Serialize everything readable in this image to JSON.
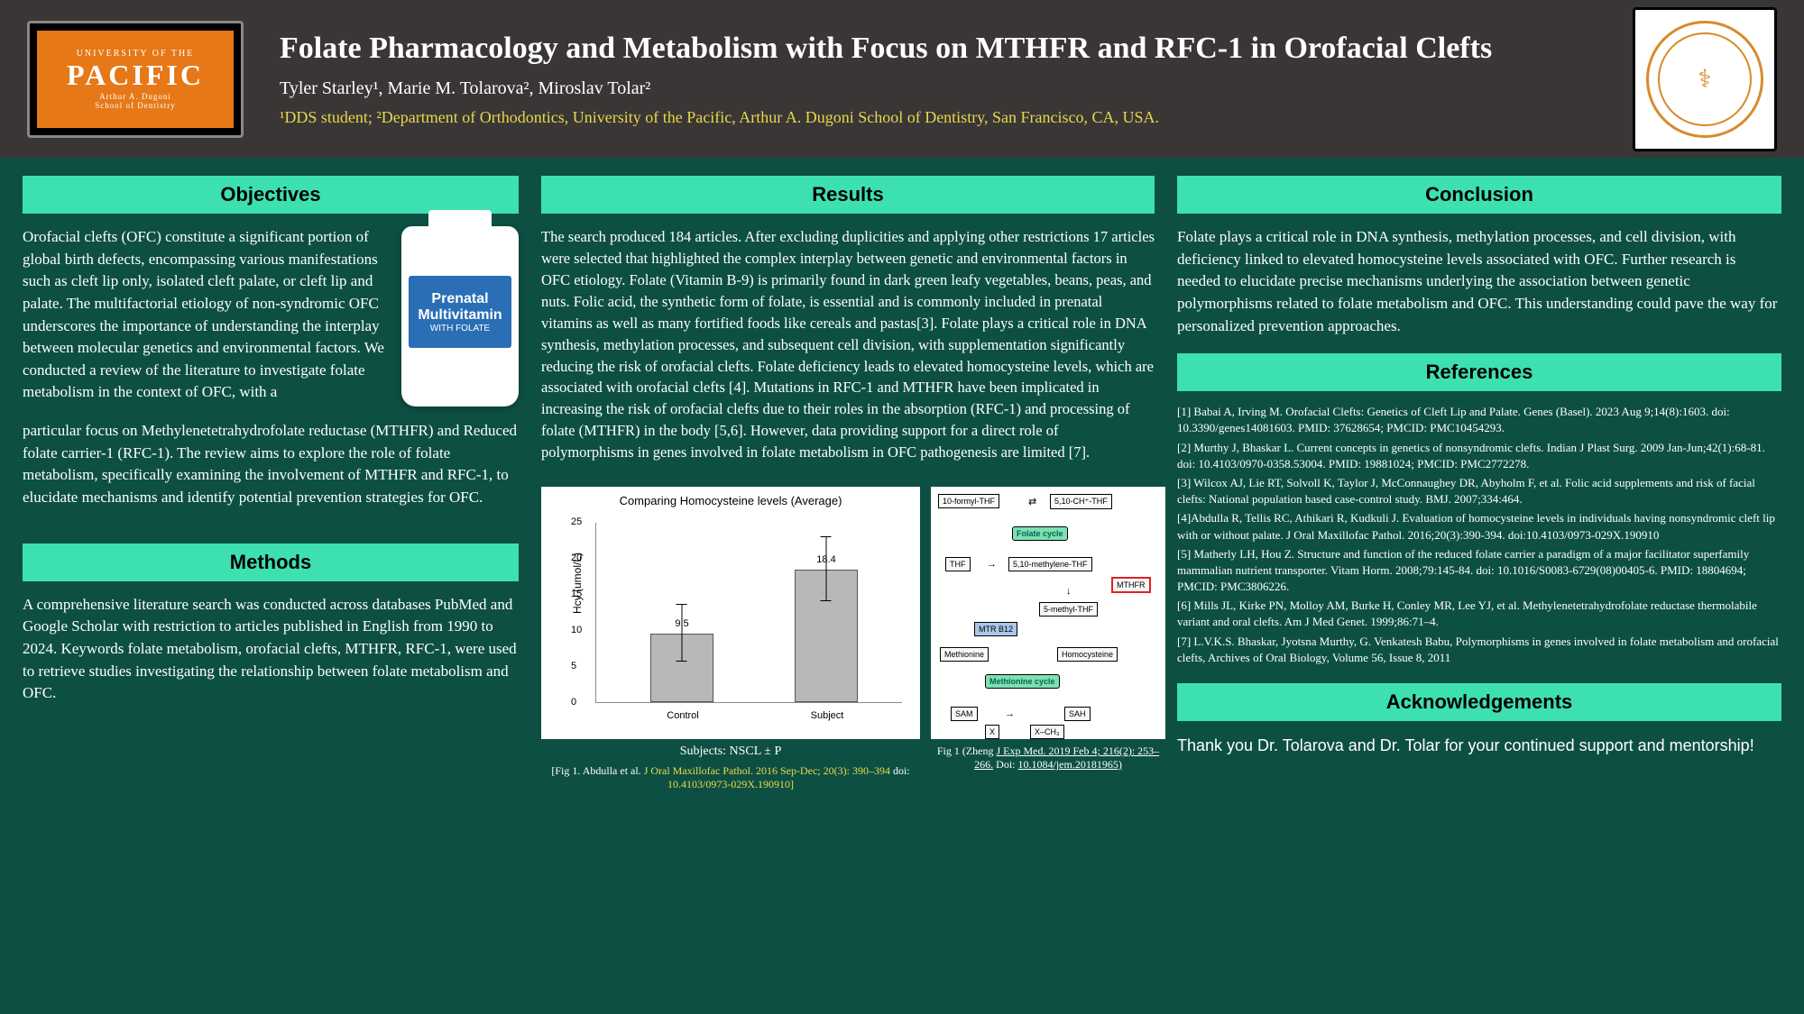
{
  "header": {
    "logo_left": {
      "line1": "UNIVERSITY OF THE",
      "line2": "PACIFIC",
      "line3": "Arthur A. Dugoni",
      "line4": "School of Dentistry"
    },
    "title": "Folate Pharmacology and Metabolism with Focus on MTHFR and RFC-1 in Orofacial Clefts",
    "authors": "Tyler Starley¹, Marie M. Tolarova², Miroslav Tolar²",
    "affiliation": "¹DDS student;  ²Department of Orthodontics, University of the Pacific,  Arthur A. Dugoni School of Dentistry, San Francisco, CA, USA."
  },
  "sections": {
    "objectives": {
      "header": "Objectives",
      "text1": "Orofacial clefts (OFC) constitute a significant portion of global birth defects, encompassing various manifestations such as cleft lip only, isolated cleft palate, or cleft lip and palate. The multifactorial etiology of non-syndromic OFC underscores the importance of understanding the interplay between molecular genetics and environmental factors. We conducted a review of the literature to investigate folate metabolism in the context of OFC, with a",
      "text2": "particular focus on Methylenetetrahydrofolate reductase (MTHFR) and Reduced folate carrier-1 (RFC-1). The review aims to explore the role of folate metabolism, specifically examining the involvement of MTHFR and RFC-1, to elucidate mechanisms and identify potential prevention strategies for OFC.",
      "bottle": {
        "l1": "Prenatal",
        "l2": "Multivitamin",
        "l3": "WITH FOLATE"
      }
    },
    "methods": {
      "header": "Methods",
      "text": "A comprehensive literature search was conducted across databases PubMed and Google Scholar with restriction to articles published in English from 1990 to 2024.  Keywords folate metabolism, orofacial clefts, MTHFR, RFC-1, were used to retrieve studies investigating the relationship between folate metabolism and OFC."
    },
    "results": {
      "header": "Results",
      "text": "The search produced 184 articles. After excluding duplicities and applying other restrictions 17 articles were selected that highlighted the complex interplay between genetic and environmental factors in OFC etiology. Folate (Vitamin B-9) is primarily found in dark green leafy vegetables, beans, peas, and nuts. Folic acid, the synthetic form of folate, is essential and is commonly included in prenatal vitamins as well as many fortified foods like cereals and pastas[3]. Folate plays a critical role in DNA synthesis, methylation processes, and subsequent cell division, with supplementation significantly reducing the risk of orofacial clefts. Folate deficiency leads to elevated homocysteine levels, which are associated with orofacial clefts [4]. Mutations in RFC-1 and MTHFR have been implicated in increasing the risk of orofacial clefts due to their roles in the absorption (RFC-1) and processing of folate (MTHFR) in the body [5,6]. However, data providing support for a direct role of polymorphisms in genes involved in folate metabolism in OFC pathogenesis are limited [7]."
    },
    "conclusion": {
      "header": "Conclusion",
      "text": "Folate plays a critical role in DNA synthesis, methylation processes, and cell division, with deficiency linked to elevated homocysteine levels associated with OFC. Further research is needed to elucidate precise mechanisms underlying the association between genetic polymorphisms related to folate metabolism and OFC. This understanding could pave the way for personalized prevention approaches."
    },
    "references": {
      "header": "References"
    },
    "acknowledgements": {
      "header": "Acknowledgements",
      "text": "Thank you Dr. Tolarova and Dr. Tolar for your continued support and mentorship!"
    }
  },
  "refs": [
    "[1] Babai A, Irving M. Orofacial Clefts: Genetics of Cleft Lip and Palate. Genes (Basel). 2023 Aug 9;14(8):1603. doi: 10.3390/genes14081603. PMID: 37628654; PMCID: PMC10454293.",
    "[2] Murthy J, Bhaskar L. Current concepts in genetics of nonsyndromic clefts. Indian J Plast Surg. 2009 Jan-Jun;42(1):68-81. doi: 10.4103/0970-0358.53004. PMID: 19881024; PMCID: PMC2772278.",
    "[3] Wilcox AJ, Lie RT, Solvoll K, Taylor J, McConnaughey DR, Abyholm F, et al. Folic acid supplements and risk of facial clefts: National population based case-control study. BMJ. 2007;334:464.",
    "[4]Abdulla R, Tellis RC, Athikari R, Kudkuli J. Evaluation of homocysteine levels in individuals having nonsyndromic cleft lip with or without palate. J Oral Maxillofac Pathol. 2016;20(3):390-394. doi:10.4103/0973-029X.190910",
    "[5] Matherly LH, Hou Z. Structure and function of the reduced folate carrier a paradigm of a major facilitator superfamily mammalian nutrient transporter. Vitam Horm. 2008;79:145-84. doi: 10.1016/S0083-6729(08)00405-6. PMID: 18804694; PMCID: PMC3806226.",
    "[6] Mills JL, Kirke PN, Molloy AM, Burke H, Conley MR, Lee YJ, et al. Methylenetetrahydrofolate reductase thermolabile variant and oral clefts. Am J Med Genet. 1999;86:71–4.",
    "[7]  L.V.K.S. Bhaskar, Jyotsna Murthy, G. Venkatesh Babu, Polymorphisms in genes involved in folate metabolism and orofacial clefts, Archives of Oral Biology, Volume 56, Issue 8, 2011"
  ],
  "barchart": {
    "type": "bar",
    "title": "Comparing Homocysteine levels (Average)",
    "ylabel": "Hcy (umol/L)",
    "ylim": [
      0,
      25
    ],
    "ytick_step": 5,
    "categories": [
      "Control",
      "Subject"
    ],
    "values": [
      9.5,
      18.4
    ],
    "err": [
      4.0,
      4.5
    ],
    "bar_color": "#b8b8b8",
    "background_color": "#ffffff"
  },
  "cap_subjects": "Subjects: NSCL ± P",
  "cap_fig1a_1": "[Fig 1. Abdulla et al.",
  "cap_fig1a_2": "J Oral Maxillofac Pathol. 2016 Sep-Dec; 20(3): 390–394",
  "cap_fig1a_3": " doi:",
  "cap_fig1a_4": "10.4103/0973-029X.190910]",
  "cap_fig1b_1": "Fig 1 (Zheng  ",
  "cap_fig1b_2": "J Exp Med. 2019 Feb  4; 216(2): 253–266.",
  "cap_fig1b_3": " Doi: ",
  "cap_fig1b_4": "10.1084/jem.20181965)",
  "cycle": {
    "nodes": {
      "n10f": "10-formyl-THF",
      "n510c": "5,10-CH⁺-THF",
      "nthf": "THF",
      "n510m": "5,10-methylene-THF",
      "nmthfr": "MTHFR",
      "n5m": "5-methyl-THF",
      "nmtr": "MTR B12",
      "nmet": "Methionine",
      "nhcy": "Homocysteine",
      "nsam": "SAM",
      "nsah": "SAH",
      "nx": "X",
      "nxch": "X–CH₃",
      "fc": "Folate cycle",
      "mc": "Methionine cycle"
    }
  }
}
